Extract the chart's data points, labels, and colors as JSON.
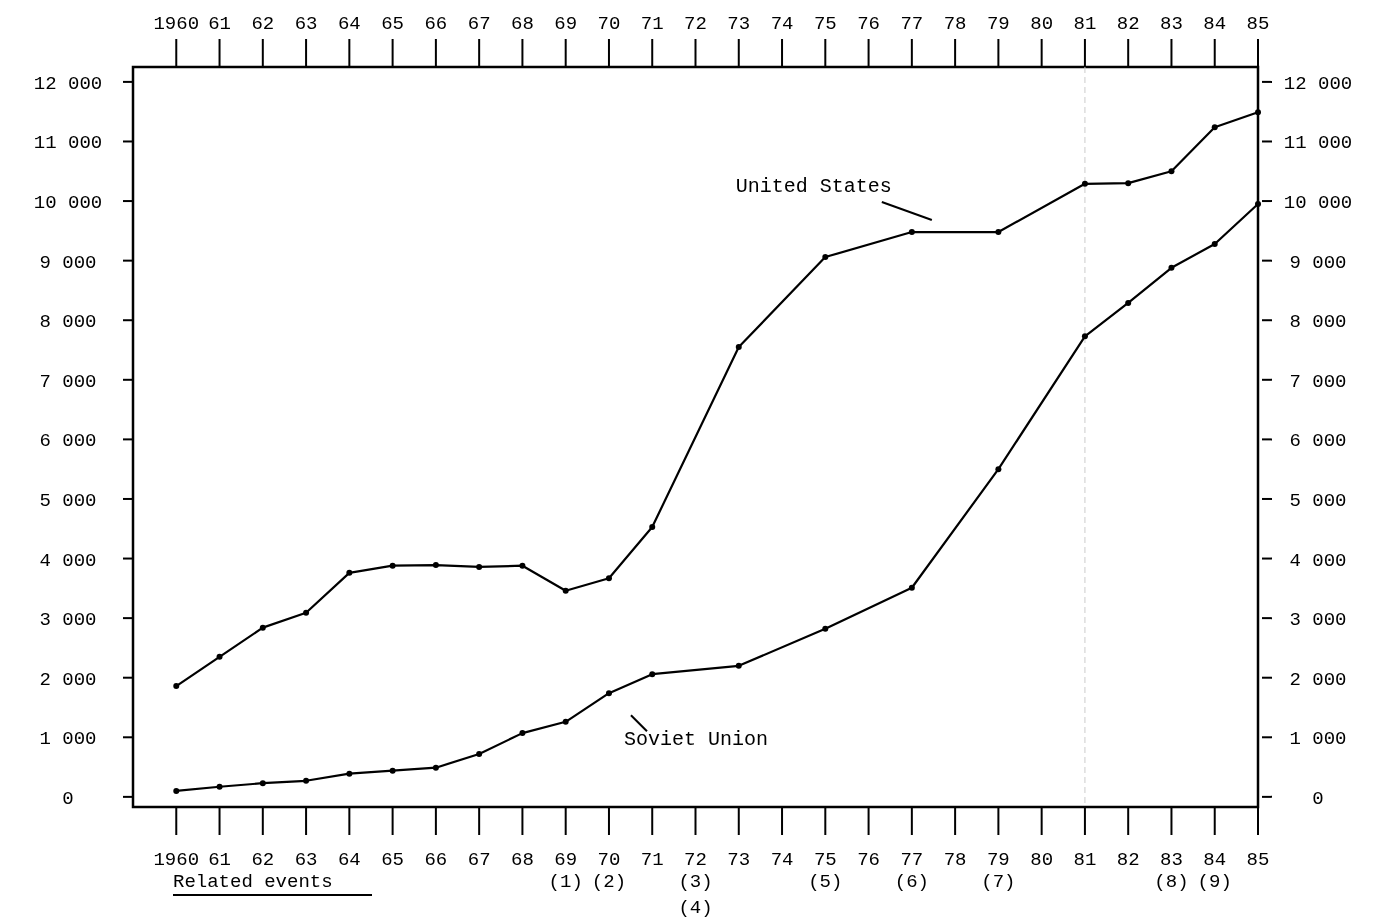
{
  "chart_data": {
    "type": "line",
    "marker": "circle",
    "line_style": "solid",
    "grid": false,
    "xlim": [
      1959,
      1985
    ],
    "ylim": [
      -170,
      12250
    ],
    "y2lim": [
      -170,
      12250
    ],
    "x2lim": [
      1959,
      1985
    ],
    "xticks": [
      {
        "value": 1960,
        "label": "1960"
      },
      {
        "value": 1961,
        "label": "61"
      },
      {
        "value": 1962,
        "label": "62"
      },
      {
        "value": 1963,
        "label": "63"
      },
      {
        "value": 1964,
        "label": "64"
      },
      {
        "value": 1965,
        "label": "65"
      },
      {
        "value": 1966,
        "label": "66"
      },
      {
        "value": 1967,
        "label": "67"
      },
      {
        "value": 1968,
        "label": "68"
      },
      {
        "value": 1969,
        "label": "69"
      },
      {
        "value": 1970,
        "label": "70"
      },
      {
        "value": 1971,
        "label": "71"
      },
      {
        "value": 1972,
        "label": "72"
      },
      {
        "value": 1973,
        "label": "73"
      },
      {
        "value": 1974,
        "label": "74"
      },
      {
        "value": 1975,
        "label": "75"
      },
      {
        "value": 1976,
        "label": "76"
      },
      {
        "value": 1977,
        "label": "77"
      },
      {
        "value": 1978,
        "label": "78"
      },
      {
        "value": 1979,
        "label": "79"
      },
      {
        "value": 1980,
        "label": "80"
      },
      {
        "value": 1981,
        "label": "81"
      },
      {
        "value": 1982,
        "label": "82"
      },
      {
        "value": 1983,
        "label": "83"
      },
      {
        "value": 1984,
        "label": "84"
      },
      {
        "value": 1985,
        "label": "85"
      }
    ],
    "x2ticks": [
      {
        "value": 1960,
        "label": "1960"
      },
      {
        "value": 1961,
        "label": "61"
      },
      {
        "value": 1962,
        "label": "62"
      },
      {
        "value": 1963,
        "label": "63"
      },
      {
        "value": 1964,
        "label": "64"
      },
      {
        "value": 1965,
        "label": "65"
      },
      {
        "value": 1966,
        "label": "66"
      },
      {
        "value": 1967,
        "label": "67"
      },
      {
        "value": 1968,
        "label": "68"
      },
      {
        "value": 1969,
        "label": "69"
      },
      {
        "value": 1970,
        "label": "70"
      },
      {
        "value": 1971,
        "label": "71"
      },
      {
        "value": 1972,
        "label": "72"
      },
      {
        "value": 1973,
        "label": "73"
      },
      {
        "value": 1974,
        "label": "74"
      },
      {
        "value": 1975,
        "label": "75"
      },
      {
        "value": 1976,
        "label": "76"
      },
      {
        "value": 1977,
        "label": "77"
      },
      {
        "value": 1978,
        "label": "78"
      },
      {
        "value": 1979,
        "label": "79"
      },
      {
        "value": 1980,
        "label": "80"
      },
      {
        "value": 1981,
        "label": "81"
      },
      {
        "value": 1982,
        "label": "82"
      },
      {
        "value": 1983,
        "label": "83"
      },
      {
        "value": 1984,
        "label": "84"
      },
      {
        "value": 1985,
        "label": "85"
      }
    ],
    "yticks": [
      0,
      {
        "value": 1000,
        "label": "1 000"
      },
      {
        "value": 2000,
        "label": "2 000"
      },
      {
        "value": 3000,
        "label": "3 000"
      },
      {
        "value": 4000,
        "label": "4 000"
      },
      {
        "value": 5000,
        "label": "5 000"
      },
      {
        "value": 6000,
        "label": "6 000"
      },
      {
        "value": 7000,
        "label": "7 000"
      },
      {
        "value": 8000,
        "label": "8 000"
      },
      {
        "value": 9000,
        "label": "9 000"
      },
      {
        "value": 10000,
        "label": "10 000"
      },
      {
        "value": 11000,
        "label": "11 000"
      },
      {
        "value": 12000,
        "label": "12 000"
      }
    ],
    "y2ticks": [
      0,
      {
        "value": 1000,
        "label": "1 000"
      },
      {
        "value": 2000,
        "label": "2 000"
      },
      {
        "value": 3000,
        "label": "3 000"
      },
      {
        "value": 4000,
        "label": "4 000"
      },
      {
        "value": 5000,
        "label": "5 000"
      },
      {
        "value": 6000,
        "label": "6 000"
      },
      {
        "value": 7000,
        "label": "7 000"
      },
      {
        "value": 8000,
        "label": "8 000"
      },
      {
        "value": 9000,
        "label": "9 000"
      },
      {
        "value": 10000,
        "label": "10 000"
      },
      {
        "value": 11000,
        "label": "11 000"
      },
      {
        "value": 12000,
        "label": "12 000"
      }
    ],
    "series": [
      {
        "name": "United States",
        "color": "#000000",
        "x": [
          1960,
          1961,
          1962,
          1963,
          1964,
          1965,
          1966,
          1967,
          1968,
          1969,
          1970,
          1971,
          1973,
          1975,
          1977,
          1979,
          1981,
          1982,
          1983,
          1984,
          1985
        ],
        "values": [
          1860,
          2350,
          2840,
          3090,
          3760,
          3880,
          3890,
          3860,
          3880,
          3460,
          3670,
          4530,
          7550,
          9060,
          9480,
          9480,
          10290,
          10300,
          10500,
          11240,
          11490
        ]
      },
      {
        "name": "Soviet Union",
        "color": "#000000",
        "x": [
          1960,
          1961,
          1962,
          1963,
          1964,
          1965,
          1966,
          1967,
          1968,
          1969,
          1970,
          1971,
          1973,
          1975,
          1977,
          1979,
          1981,
          1982,
          1983,
          1984,
          1985
        ],
        "values": [
          100,
          170,
          230,
          270,
          390,
          440,
          490,
          720,
          1070,
          1260,
          1740,
          2060,
          2200,
          2820,
          3510,
          5500,
          7730,
          8290,
          8880,
          9280,
          9950
        ]
      }
    ],
    "ref_lines": [
      {
        "axis": "x",
        "value": 1981,
        "color": "#cccccc",
        "line_style": "dashed"
      }
    ],
    "annotations": [
      "Related events",
      "(1)",
      "(2)",
      "(3)",
      "(4)",
      "(5)",
      "(6)",
      "(7)",
      "(8)",
      "(9)"
    ]
  }
}
